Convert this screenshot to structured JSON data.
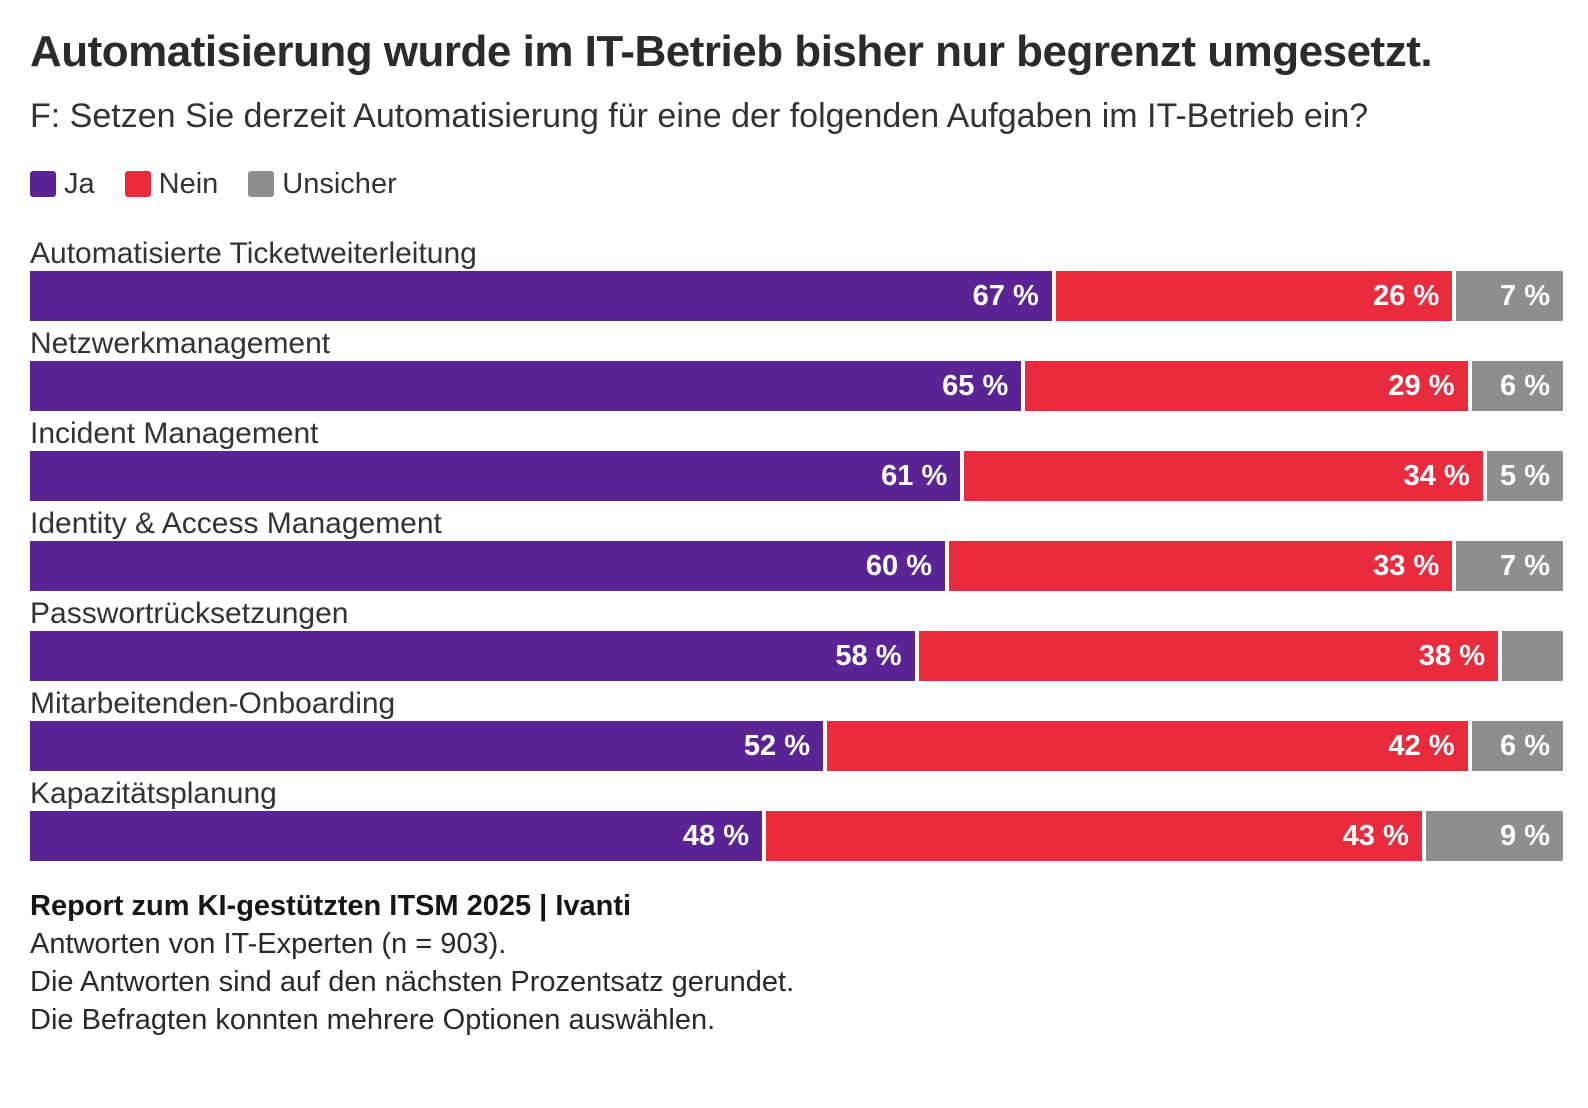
{
  "page": {
    "title": "Automatisierung wurde im IT-Betrieb bisher nur begrenzt umgesetzt.",
    "subtitle": "F: Setzen Sie derzeit Automatisierung für eine der folgenden Aufgaben im IT-Betrieb ein?"
  },
  "colors": {
    "ja": "#5B2494",
    "nein": "#E82C3E",
    "unsicher": "#8E8E8E",
    "title_text": "#2B2B2B",
    "body_text": "#333333",
    "bar_label_text": "#FFFFFF"
  },
  "legend": {
    "items": [
      {
        "label": "Ja",
        "color": "#5B2494"
      },
      {
        "label": "Nein",
        "color": "#E82C3E"
      },
      {
        "label": "Unsicher",
        "color": "#8E8E8E"
      }
    ]
  },
  "chart_data": {
    "type": "bar",
    "orientation": "horizontal",
    "stacked": true,
    "unit": "%",
    "xlim": [
      0,
      100
    ],
    "grid": false,
    "legend_position": "top-left",
    "title": "Automatisierung wurde im IT-Betrieb bisher nur begrenzt umgesetzt.",
    "xlabel": "",
    "ylabel": "",
    "categories": [
      "Automatisierte Ticketweiterleitung",
      "Netzwerkmanagement",
      "Incident Management",
      "Identity & Access Management",
      "Passwortrücksetzungen",
      "Mitarbeitenden-Onboarding",
      "Kapazitätsplanung"
    ],
    "series": [
      {
        "name": "Ja",
        "color": "#5B2494",
        "values": [
          67,
          65,
          61,
          60,
          58,
          52,
          48
        ],
        "labels": [
          "67 %",
          "65 %",
          "61 %",
          "60 %",
          "58 %",
          "52 %",
          "48 %"
        ]
      },
      {
        "name": "Nein",
        "color": "#E82C3E",
        "values": [
          26,
          29,
          34,
          33,
          38,
          42,
          43
        ],
        "labels": [
          "26 %",
          "29 %",
          "34 %",
          "33 %",
          "38 %",
          "42 %",
          "43 %"
        ]
      },
      {
        "name": "Unsicher",
        "color": "#8E8E8E",
        "values": [
          7,
          6,
          5,
          7,
          4,
          6,
          9
        ],
        "labels": [
          "7 %",
          "6 %",
          "5 %",
          "7 %",
          "",
          "6 %",
          "9 %"
        ]
      }
    ]
  },
  "footer": {
    "source_bold": "Report zum KI-gestützten ITSM 2025 | Ivanti",
    "lines": [
      "Antworten von IT-Experten (n = 903).",
      "Die Antworten sind auf den nächsten Prozentsatz gerundet.",
      "Die Befragten konnten mehrere Optionen auswählen."
    ]
  }
}
